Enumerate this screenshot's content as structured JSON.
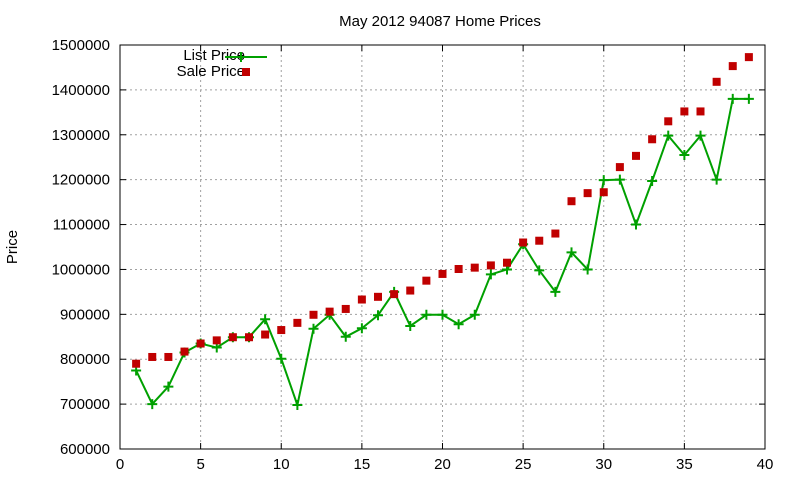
{
  "chart_data": {
    "type": "line",
    "title": "May 2012 94087 Home Prices",
    "xlabel": "",
    "ylabel": "Price",
    "xlim": [
      0,
      40
    ],
    "ylim": [
      600000,
      1500000
    ],
    "xticks": [
      0,
      5,
      10,
      15,
      20,
      25,
      30,
      35,
      40
    ],
    "yticks": [
      600000,
      700000,
      800000,
      900000,
      1000000,
      1100000,
      1200000,
      1300000,
      1400000,
      1500000
    ],
    "grid": true,
    "legend_position": "top-left",
    "x": [
      1,
      2,
      3,
      4,
      5,
      6,
      7,
      8,
      9,
      10,
      11,
      12,
      13,
      14,
      15,
      16,
      17,
      18,
      19,
      20,
      21,
      22,
      23,
      24,
      25,
      26,
      27,
      28,
      29,
      30,
      31,
      32,
      33,
      34,
      35,
      36,
      37,
      38,
      39
    ],
    "series": [
      {
        "name": "List Price",
        "style": "linespoints",
        "marker": "plus",
        "color": "#00a000",
        "values": [
          775000,
          700000,
          739000,
          815000,
          835000,
          826000,
          849000,
          849000,
          889000,
          801000,
          698000,
          868000,
          899000,
          850000,
          869000,
          898000,
          950000,
          874000,
          899000,
          899000,
          878000,
          899000,
          989000,
          1000000,
          1056000,
          998000,
          950000,
          1038000,
          1000000,
          1199000,
          1200000,
          1100000,
          1197000,
          1298000,
          1255000,
          1298000,
          1200000,
          1380000,
          1380000
        ]
      },
      {
        "name": "Sale Price",
        "style": "points",
        "marker": "square",
        "color": "#c00000",
        "values": [
          790000,
          805000,
          805000,
          817000,
          835000,
          842000,
          849000,
          849000,
          855000,
          865000,
          881000,
          899000,
          906000,
          912000,
          933000,
          939000,
          945000,
          953000,
          975000,
          990000,
          1001000,
          1004000,
          1009000,
          1015000,
          1060000,
          1064000,
          1080000,
          1152000,
          1170000,
          1172000,
          1228000,
          1253000,
          1290000,
          1330000,
          1352000,
          1352000,
          1418000,
          1453000,
          1473000
        ]
      }
    ]
  },
  "labels": {
    "title": "May 2012 94087 Home Prices",
    "ylabel": "Price",
    "legend_list": "List Price",
    "legend_sale": "Sale Price"
  }
}
